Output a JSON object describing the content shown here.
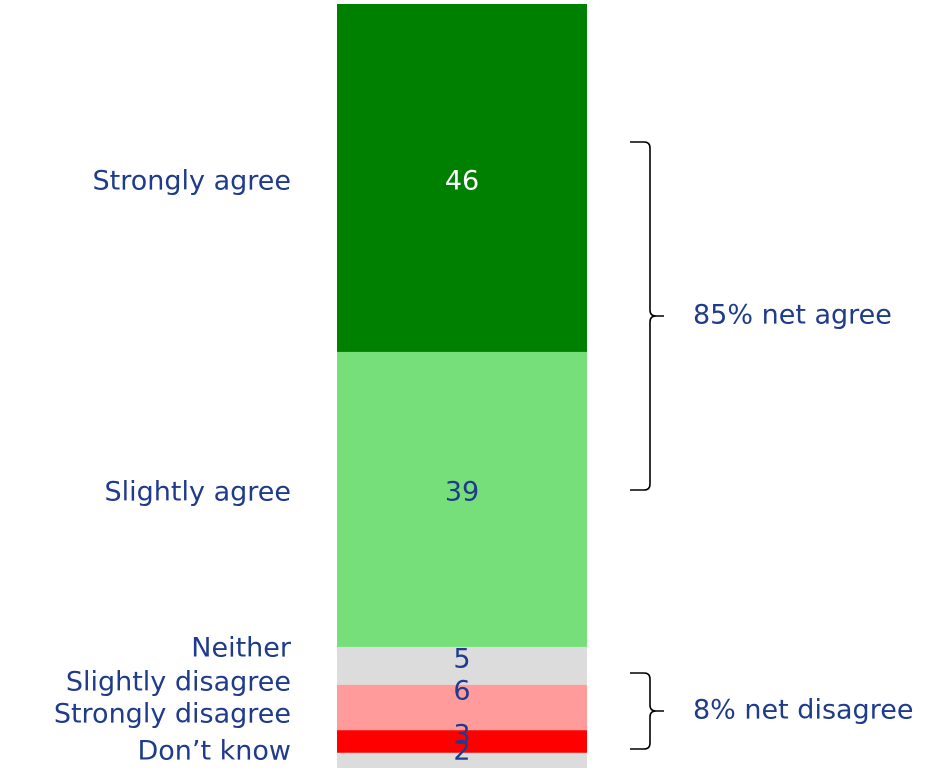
{
  "chart_data": {
    "type": "bar",
    "orientation": "stacked-vertical",
    "title": "",
    "xlabel": "",
    "ylabel": "",
    "ylim": [
      0,
      101
    ],
    "grid": false,
    "legend": "none",
    "categories": [
      "Strongly agree",
      "Slightly agree",
      "Neither",
      "Slightly disagree",
      "Strongly disagree",
      "Don’t know"
    ],
    "values": [
      46,
      39,
      5,
      6,
      3,
      2
    ],
    "value_labels": [
      "46",
      "39",
      "5",
      "6",
      "3",
      "2"
    ],
    "colors": [
      "#008000",
      "#77df79",
      "#dcdcdc",
      "#ff9b9b",
      "#ff0000",
      "#dcdcdc"
    ],
    "label_colors": [
      "#ffffff",
      "#1f3b8c",
      "#1f3b8c",
      "#1f3b8c",
      "#1f3b8c",
      "#1f3b8c"
    ],
    "annotations": [
      {
        "text": "85% net agree",
        "covers": [
          "Strongly agree",
          "Slightly agree"
        ]
      },
      {
        "text": "8% net disagree",
        "covers": [
          "Slightly disagree",
          "Strongly disagree"
        ]
      }
    ],
    "text_color": "#1f3b8c"
  }
}
